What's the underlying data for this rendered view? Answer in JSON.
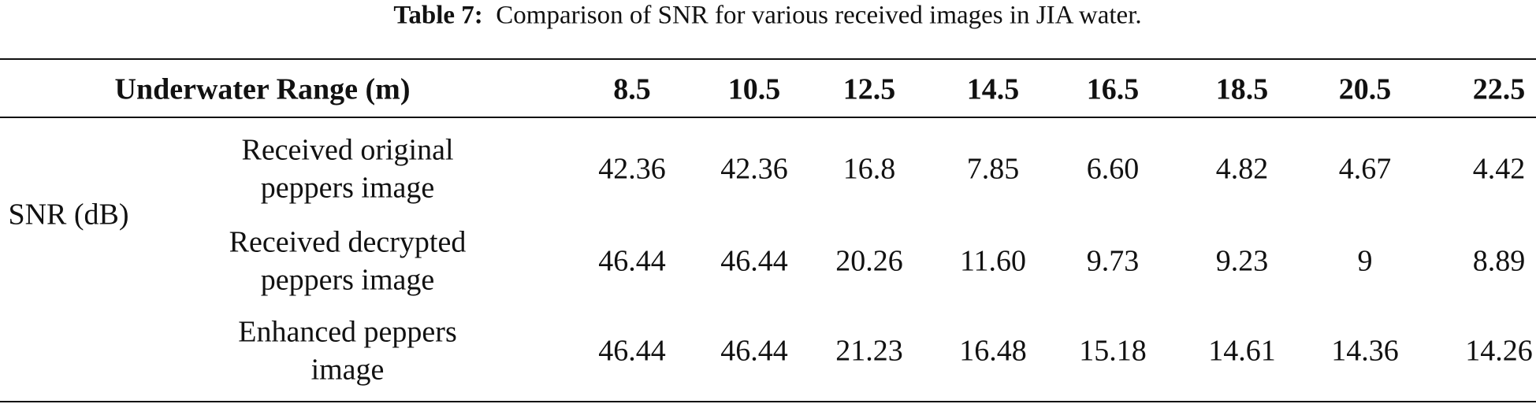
{
  "caption": {
    "label": "Table 7:",
    "text": "Comparison of SNR for various received images in JIA water."
  },
  "table": {
    "header": [
      "Underwater Range (m)",
      "8.5",
      "10.5",
      "12.5",
      "14.5",
      "16.5",
      "18.5",
      "20.5",
      "22.5"
    ],
    "group_label": "SNR (dB)",
    "rows": [
      {
        "label": [
          "Received original",
          "peppers image"
        ],
        "values": [
          "42.36",
          "42.36",
          "16.8",
          "7.85",
          "6.60",
          "4.82",
          "4.67",
          "4.42"
        ]
      },
      {
        "label": [
          "Received decrypted",
          "peppers image"
        ],
        "values": [
          "46.44",
          "46.44",
          "20.26",
          "11.60",
          "9.73",
          "9.23",
          "9",
          "8.89"
        ]
      },
      {
        "label": [
          "Enhanced peppers",
          "image"
        ],
        "values": [
          "46.44",
          "46.44",
          "21.23",
          "16.48",
          "15.18",
          "14.61",
          "14.36",
          "14.26"
        ]
      }
    ]
  }
}
